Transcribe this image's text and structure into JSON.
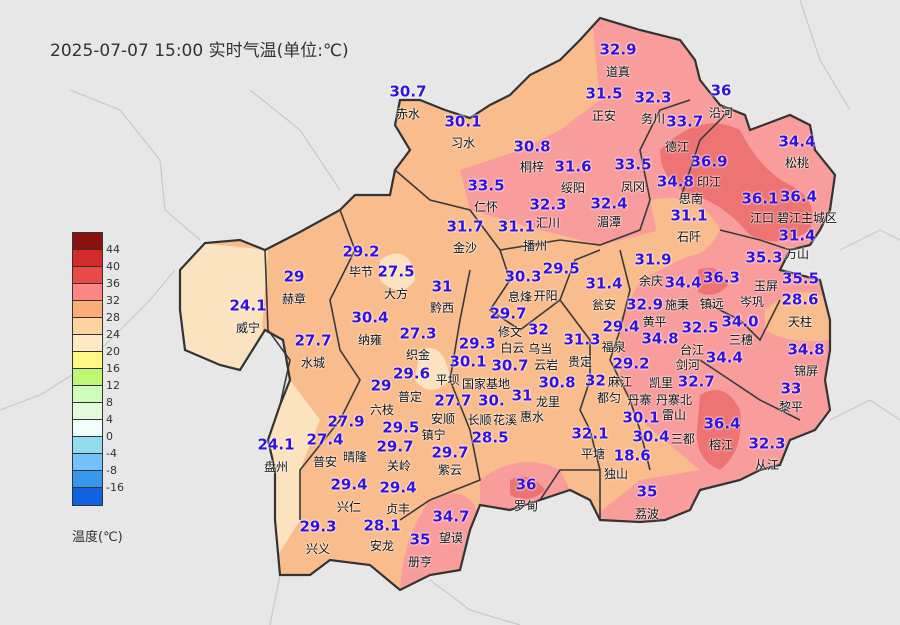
{
  "title": "2025-07-07 15:00 实时气温(单位:℃)",
  "legend": {
    "unit": "温度(℃)",
    "ticks": [
      "44",
      "40",
      "36",
      "32",
      "28",
      "24",
      "20",
      "16",
      "12",
      "8",
      "4",
      "0",
      "-4",
      "-8",
      "-16"
    ],
    "colors": [
      "#8b1010",
      "#d42a2a",
      "#e84a4a",
      "#fd8585",
      "#fcac76",
      "#fcd4a2",
      "#fde9c4",
      "#fff686",
      "#bdf774",
      "#cdfdbd",
      "#e4fbdb",
      "#f1fffb",
      "#92dcf0",
      "#74c1fb",
      "#3598ea",
      "#1262df"
    ]
  },
  "map_colors": {
    "background": "#e7e7e7",
    "cream": "#fbe3c0",
    "orange": "#f9bc8c",
    "pink": "#f89c9c",
    "red": "#ee7474",
    "border": "#3a3a3a"
  },
  "stations": [
    {
      "v": "32.9",
      "n": "道真"
    },
    {
      "v": "30.7",
      "n": "赤水"
    },
    {
      "v": "30.1",
      "n": "习水"
    },
    {
      "v": "31.5",
      "n": "正安"
    },
    {
      "v": "32.3",
      "n": "务川"
    },
    {
      "v": "36",
      "n": "沿河"
    },
    {
      "v": "33.7",
      "n": "德江"
    },
    {
      "v": "34.4",
      "n": "松桃"
    },
    {
      "v": "30.8",
      "n": "桐梓"
    },
    {
      "v": "31.6",
      "n": "绥阳"
    },
    {
      "v": "33.5",
      "n": "凤冈"
    },
    {
      "v": "36.9",
      "n": "印江"
    },
    {
      "v": "34.8",
      "n": "思南"
    },
    {
      "v": "33.5",
      "n": "仁怀"
    },
    {
      "v": "32.3",
      "n": "汇川"
    },
    {
      "v": "32.4",
      "n": "湄潭"
    },
    {
      "v": "36.1",
      "n": "江口"
    },
    {
      "v": "36.4",
      "n": "碧江主城区"
    },
    {
      "v": "31.4",
      "n": "万山"
    },
    {
      "v": "31.7",
      "n": "金沙"
    },
    {
      "v": "31.1",
      "n": "播州"
    },
    {
      "v": "31.1",
      "n": "石阡"
    },
    {
      "v": "29.2",
      "n": "毕节"
    },
    {
      "v": "29",
      "n": "赫章"
    },
    {
      "v": "27.5",
      "n": "大方"
    },
    {
      "v": "31",
      "n": "黔西"
    },
    {
      "v": "30.3",
      "n": "息烽"
    },
    {
      "v": "29.5",
      "n": "开阳"
    },
    {
      "v": "31.4",
      "n": "瓮安"
    },
    {
      "v": "31.9",
      "n": "余庆"
    },
    {
      "v": "34.4",
      "n": "施秉"
    },
    {
      "v": "36.3",
      "n": "镇远"
    },
    {
      "v": "35.3",
      "n": "玉屏"
    },
    {
      "v": "35.5",
      "n": "岑巩"
    },
    {
      "v": "34.0",
      "n": "三穗"
    },
    {
      "v": "28.6",
      "n": "天柱"
    },
    {
      "v": "24.1",
      "n": "威宁"
    },
    {
      "v": "30.4",
      "n": "纳雍"
    },
    {
      "v": "27.3",
      "n": "织金"
    },
    {
      "v": "29.7",
      "n": "修文"
    },
    {
      "v": "29.3",
      "n": "白云"
    },
    {
      "v": "30.7",
      "n": "乌当"
    },
    {
      "v": "32",
      "n": "云岩"
    },
    {
      "v": "31.3",
      "n": "贵定"
    },
    {
      "v": "29.4",
      "n": "福泉"
    },
    {
      "v": "29.2",
      "n": "麻江"
    },
    {
      "v": "32.9",
      "n": "黄平"
    },
    {
      "v": "32.5",
      "n": "台江"
    },
    {
      "v": "34.4",
      "n": "剑河"
    },
    {
      "v": "34.8",
      "n": "凯里"
    },
    {
      "v": "32.7",
      "n": "丹寨北"
    },
    {
      "v": "34.8",
      "n": "锦屏"
    },
    {
      "v": "33",
      "n": "黎平"
    },
    {
      "v": "27.7",
      "n": "水城"
    },
    {
      "v": "30.1",
      "n": "国家基地"
    },
    {
      "v": "30.8",
      "n": "龙里"
    },
    {
      "v": "29",
      "n": "六枝"
    },
    {
      "v": "29.6",
      "n": "普定"
    },
    {
      "v": "27.7",
      "n": "安顺"
    },
    {
      "v": "29.5",
      "n": "镇宁"
    },
    {
      "v": "29.7",
      "n": "关岭"
    },
    {
      "v": "30.",
      "n": "平坝"
    },
    {
      "v": "31",
      "n": "花溪"
    },
    {
      "v": "28.5",
      "n": "惠水"
    },
    {
      "v": "",
      "n": "长顺"
    },
    {
      "v": "32",
      "n": "都匀"
    },
    {
      "v": "30.1",
      "n": "雷山"
    },
    {
      "v": "30.4",
      "n": "丹寨"
    },
    {
      "v": "32.1",
      "n": "平塘"
    },
    {
      "v": "18.6",
      "n": "独山"
    },
    {
      "v": "",
      "n": "三都"
    },
    {
      "v": "36.4",
      "n": "榕江"
    },
    {
      "v": "32.3",
      "n": "从江"
    },
    {
      "v": "24.1",
      "n": "盘州"
    },
    {
      "v": "27.4",
      "n": "普安"
    },
    {
      "v": "27.9",
      "n": "晴隆"
    },
    {
      "v": "29.7",
      "n": "紫云"
    },
    {
      "v": "36",
      "n": "罗甸"
    },
    {
      "v": "35",
      "n": "荔波"
    },
    {
      "v": "29.4",
      "n": "兴仁"
    },
    {
      "v": "29.4",
      "n": "贞丰"
    },
    {
      "v": "34.7",
      "n": "望谟"
    },
    {
      "v": "29.3",
      "n": "兴义"
    },
    {
      "v": "28.1",
      "n": "安龙"
    },
    {
      "v": "35",
      "n": "册亨"
    }
  ]
}
